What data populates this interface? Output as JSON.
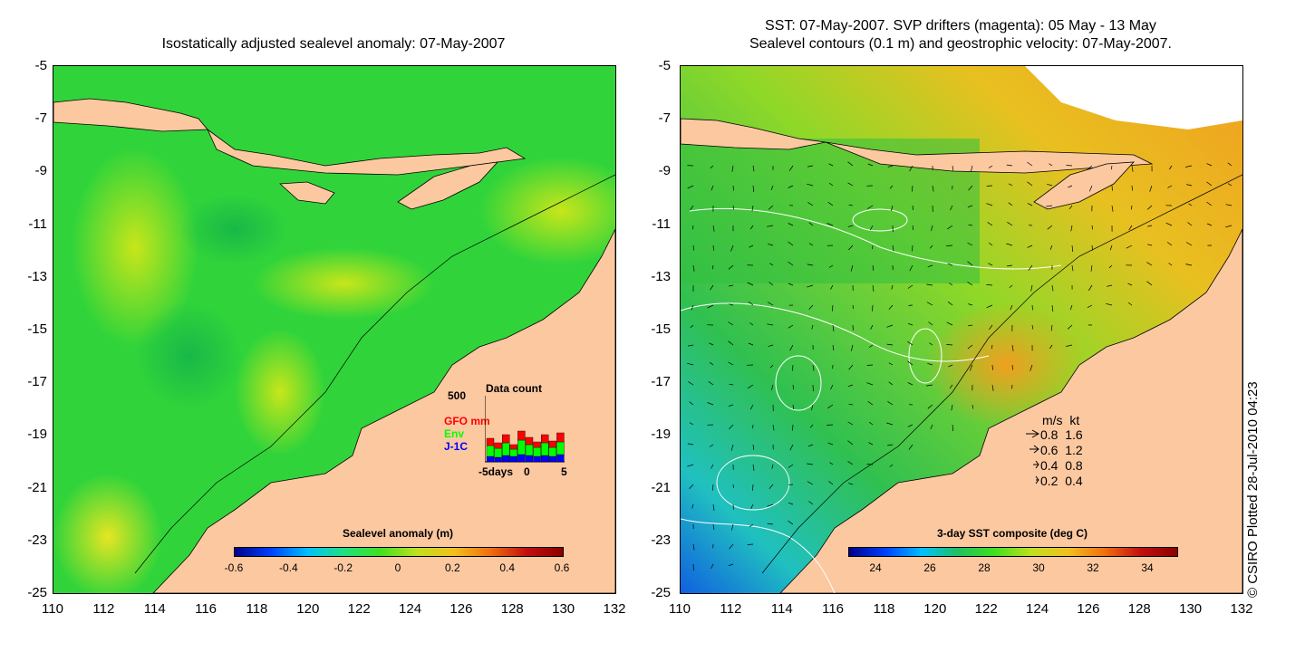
{
  "left_panel": {
    "title": "Isostatically adjusted sealevel anomaly: 07-May-2007",
    "colorbar": {
      "label": "Sealevel anomaly (m)",
      "ticks": [
        "-0.6",
        "-0.4",
        "-0.2",
        "0",
        "0.2",
        "0.4",
        "0.6"
      ]
    },
    "data_count": {
      "title": "Data count",
      "max_label": "500",
      "series": [
        {
          "name": "GFO",
          "color": "#ff0000"
        },
        {
          "name": "Env",
          "color": "#00ff00"
        },
        {
          "name": "J-1C",
          "color": "#0000ff"
        }
      ],
      "suffix": "mm",
      "x_left": "-5days",
      "x_mid": "0",
      "x_right": "5"
    }
  },
  "right_panel": {
    "title_line1": "SST: 07-May-2007. SVP drifters (magenta): 05 May - 13 May",
    "title_line2": "Sealevel contours (0.1 m) and geostrophic velocity: 07-May-2007.",
    "colorbar": {
      "label": "3-day SST composite (deg C)",
      "ticks": [
        "24",
        "26",
        "28",
        "30",
        "32",
        "34"
      ]
    },
    "velocity_legend": {
      "header_ms": "m/s",
      "header_kt": "kt",
      "rows": [
        {
          "ms": "0.8",
          "kt": "1.6"
        },
        {
          "ms": "0.6",
          "kt": "1.2"
        },
        {
          "ms": "0.4",
          "kt": "0.8"
        },
        {
          "ms": "0.2",
          "kt": "0.4"
        }
      ]
    }
  },
  "y_ticks": [
    "-5",
    "-7",
    "-9",
    "-11",
    "-13",
    "-15",
    "-17",
    "-19",
    "-21",
    "-23",
    "-25"
  ],
  "x_ticks": [
    "110",
    "112",
    "114",
    "116",
    "118",
    "120",
    "122",
    "124",
    "126",
    "128",
    "130",
    "132"
  ],
  "copyright": "© CSIRO Plotted 28-Jul-2010 04:23",
  "colors": {
    "land": "#fcc8a0",
    "sea_green": "#2ed42e",
    "sea_yellow": "#b0e61a",
    "warm_orange": "#f0a020",
    "cold_blue": "#1060e0"
  }
}
